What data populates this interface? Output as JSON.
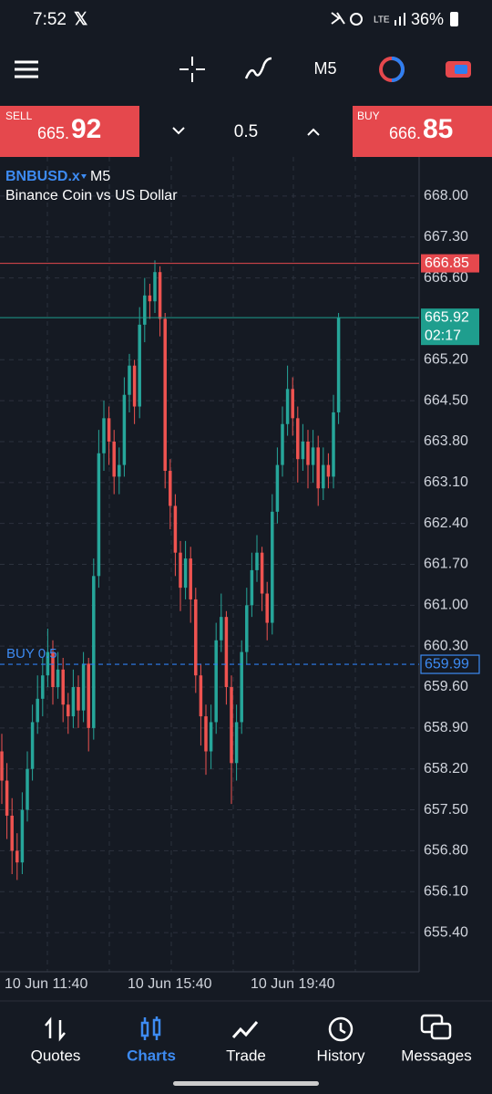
{
  "status_bar": {
    "time": "7:52",
    "battery": "36%"
  },
  "toolbar": {
    "timeframe": "M5"
  },
  "trade_bar": {
    "sell_label": "SELL",
    "sell_price_small": "665.",
    "sell_price_big": "92",
    "volume": "0.5",
    "buy_label": "BUY",
    "buy_price_small": "666.",
    "buy_price_big": "85"
  },
  "chart_data": {
    "type": "candlestick",
    "symbol": "BNBUSD.x",
    "description": "Binance Coin vs US Dollar",
    "open": [
      658.5,
      658.0,
      657.4,
      656.8,
      656.6,
      657.5,
      658.2,
      659.0,
      659.4,
      659.8,
      660.2,
      659.6,
      659.9,
      659.3,
      659.1,
      659.6,
      659.2,
      660.0,
      658.9,
      661.5,
      663.6,
      664.2,
      663.8,
      663.2,
      663.4,
      664.6,
      665.1,
      664.4,
      665.8,
      666.3,
      666.2,
      666.7,
      665.9,
      663.3,
      662.7,
      661.9,
      661.3,
      661.8,
      661.1,
      659.8,
      659.1,
      658.5,
      659.0,
      660.4,
      660.8,
      659.6,
      658.3,
      659.0,
      660.2,
      661.0,
      661.6,
      661.9,
      661.2,
      660.7,
      662.6,
      663.4,
      664.1,
      664.7,
      664.2,
      663.5,
      663.8,
      663.4,
      663.7,
      663.0,
      663.4,
      663.2,
      664.3
    ],
    "high": [
      658.8,
      658.3,
      657.7,
      657.1,
      657.8,
      658.5,
      659.3,
      659.8,
      660.1,
      660.6,
      660.4,
      660.2,
      660.1,
      659.5,
      659.9,
      659.8,
      660.2,
      660.1,
      661.8,
      664.0,
      664.5,
      664.4,
      664.0,
      663.7,
      664.9,
      665.3,
      665.2,
      666.1,
      666.6,
      666.5,
      666.9,
      666.8,
      666.0,
      663.5,
      662.9,
      662.1,
      662.1,
      662.0,
      661.3,
      660.0,
      659.3,
      659.3,
      660.7,
      661.2,
      660.9,
      659.8,
      659.3,
      660.4,
      661.3,
      661.9,
      662.2,
      662.0,
      661.4,
      662.9,
      663.7,
      664.4,
      665.1,
      664.9,
      664.4,
      664.1,
      664.0,
      664.0,
      663.9,
      663.7,
      663.6,
      664.6,
      666.0
    ],
    "low": [
      657.6,
      657.0,
      656.4,
      656.3,
      656.4,
      657.3,
      658.0,
      658.8,
      659.1,
      659.6,
      659.3,
      659.4,
      659.0,
      658.8,
      658.9,
      658.9,
      659.0,
      658.5,
      658.7,
      661.3,
      663.3,
      663.4,
      662.9,
      662.9,
      663.2,
      664.3,
      664.1,
      664.2,
      665.5,
      665.9,
      666.0,
      665.6,
      663.0,
      662.3,
      661.5,
      660.9,
      661.1,
      660.7,
      659.5,
      658.6,
      658.1,
      658.2,
      658.8,
      660.2,
      659.3,
      657.6,
      658.0,
      658.8,
      660.0,
      660.8,
      661.4,
      660.9,
      660.4,
      660.5,
      662.4,
      663.2,
      663.9,
      663.9,
      663.1,
      663.3,
      663.0,
      663.1,
      662.7,
      662.8,
      663.0,
      663.0,
      664.1
    ],
    "close": [
      658.0,
      657.4,
      656.8,
      656.6,
      657.5,
      658.2,
      659.0,
      659.4,
      659.8,
      660.2,
      659.6,
      659.9,
      659.3,
      659.1,
      659.6,
      659.2,
      660.0,
      658.9,
      661.5,
      663.6,
      664.2,
      663.8,
      663.2,
      663.4,
      664.6,
      665.1,
      664.4,
      665.8,
      666.3,
      666.2,
      666.7,
      665.9,
      663.3,
      662.7,
      661.9,
      661.3,
      661.8,
      661.1,
      659.8,
      659.1,
      658.5,
      659.0,
      660.4,
      660.8,
      659.6,
      658.3,
      659.0,
      660.2,
      661.0,
      661.6,
      661.9,
      661.2,
      660.7,
      662.6,
      663.4,
      664.1,
      664.7,
      664.2,
      663.5,
      663.8,
      663.4,
      663.7,
      663.0,
      663.4,
      663.2,
      664.3,
      665.92
    ],
    "colors": {
      "up": "#26a69a",
      "down": "#ef5350"
    },
    "ylim": [
      654.73,
      668.67
    ],
    "yticks": [
      {
        "value": 668.0,
        "label": "668.00"
      },
      {
        "value": 667.3,
        "label": "667.30"
      },
      {
        "value": 666.6,
        "label": "666.60"
      },
      {
        "value": 665.2,
        "label": "665.20"
      },
      {
        "value": 664.5,
        "label": "664.50"
      },
      {
        "value": 663.8,
        "label": "663.80"
      },
      {
        "value": 663.1,
        "label": "663.10"
      },
      {
        "value": 662.4,
        "label": "662.40"
      },
      {
        "value": 661.7,
        "label": "661.70"
      },
      {
        "value": 661.0,
        "label": "661.00"
      },
      {
        "value": 660.3,
        "label": "660.30"
      },
      {
        "value": 659.6,
        "label": "659.60"
      },
      {
        "value": 658.9,
        "label": "658.90"
      },
      {
        "value": 658.2,
        "label": "658.20"
      },
      {
        "value": 657.5,
        "label": "657.50"
      },
      {
        "value": 656.8,
        "label": "656.80"
      },
      {
        "value": 656.1,
        "label": "656.10"
      },
      {
        "value": 655.4,
        "label": "655.40"
      }
    ],
    "x_labels": [
      "10 Jun 11:40",
      "10 Jun 15:40",
      "10 Jun 19:40"
    ],
    "ask": 666.85,
    "bid": 665.92,
    "countdown": "02:17",
    "order": {
      "label": "BUY 0.5",
      "price": 659.99
    },
    "grid": true
  },
  "nav": {
    "items": [
      "Quotes",
      "Charts",
      "Trade",
      "History",
      "Messages"
    ],
    "active": 1
  }
}
